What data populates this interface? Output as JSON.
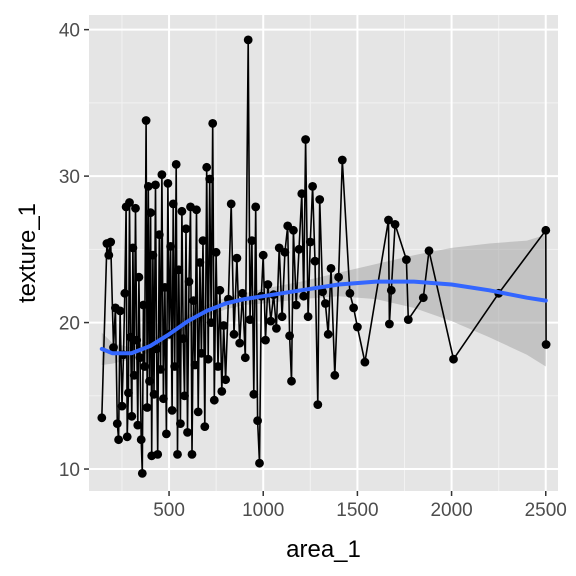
{
  "chart_data": {
    "type": "line",
    "xlabel": "area_1",
    "ylabel": "texture_1",
    "xlim": [
      75,
      2565
    ],
    "ylim": [
      8.5,
      41.0
    ],
    "x_ticks": [
      500,
      1000,
      1500,
      2000,
      2500
    ],
    "x_tick_labels": [
      "500",
      "1000",
      "1500",
      "2000",
      "2500"
    ],
    "y_ticks": [
      10,
      20,
      30,
      40
    ],
    "y_tick_labels": [
      "10",
      "20",
      "30",
      "40"
    ],
    "grid": true,
    "background": "#e5e5e5",
    "series": [
      {
        "kind": "line_with_points",
        "color": "#000000",
        "points": [
          [
            143,
            13.5
          ],
          [
            170,
            25.4
          ],
          [
            180,
            24.6
          ],
          [
            190,
            25.5
          ],
          [
            205,
            18.3
          ],
          [
            215,
            21.0
          ],
          [
            225,
            13.1
          ],
          [
            232,
            12.0
          ],
          [
            240,
            20.8
          ],
          [
            250,
            14.3
          ],
          [
            258,
            17.8
          ],
          [
            265,
            22.0
          ],
          [
            272,
            27.9
          ],
          [
            278,
            12.2
          ],
          [
            284,
            15.2
          ],
          [
            290,
            28.2
          ],
          [
            296,
            19.0
          ],
          [
            302,
            13.6
          ],
          [
            308,
            25.1
          ],
          [
            315,
            16.4
          ],
          [
            322,
            27.8
          ],
          [
            328,
            18.8
          ],
          [
            334,
            13.0
          ],
          [
            340,
            23.1
          ],
          [
            346,
            17.6
          ],
          [
            352,
            12.0
          ],
          [
            358,
            9.7
          ],
          [
            364,
            21.2
          ],
          [
            370,
            17.0
          ],
          [
            378,
            33.8
          ],
          [
            384,
            14.2
          ],
          [
            390,
            29.3
          ],
          [
            396,
            16.0
          ],
          [
            402,
            27.5
          ],
          [
            408,
            10.9
          ],
          [
            414,
            24.6
          ],
          [
            420,
            15.1
          ],
          [
            428,
            29.4
          ],
          [
            434,
            18.2
          ],
          [
            440,
            11.0
          ],
          [
            448,
            26.0
          ],
          [
            455,
            16.8
          ],
          [
            462,
            30.1
          ],
          [
            470,
            14.8
          ],
          [
            478,
            22.4
          ],
          [
            486,
            12.4
          ],
          [
            494,
            29.5
          ],
          [
            500,
            19.2
          ],
          [
            508,
            25.2
          ],
          [
            516,
            14.0
          ],
          [
            522,
            28.1
          ],
          [
            530,
            17.0
          ],
          [
            538,
            30.8
          ],
          [
            545,
            11.0
          ],
          [
            552,
            23.6
          ],
          [
            560,
            13.1
          ],
          [
            568,
            27.6
          ],
          [
            575,
            18.9
          ],
          [
            582,
            15.0
          ],
          [
            590,
            26.4
          ],
          [
            598,
            12.5
          ],
          [
            606,
            22.8
          ],
          [
            614,
            27.9
          ],
          [
            622,
            11.0
          ],
          [
            630,
            21.5
          ],
          [
            638,
            17.1
          ],
          [
            646,
            27.7
          ],
          [
            655,
            13.9
          ],
          [
            664,
            24.1
          ],
          [
            672,
            17.9
          ],
          [
            680,
            25.6
          ],
          [
            690,
            12.9
          ],
          [
            700,
            30.6
          ],
          [
            708,
            17.5
          ],
          [
            716,
            29.8
          ],
          [
            724,
            20.0
          ],
          [
            732,
            33.6
          ],
          [
            740,
            14.7
          ],
          [
            750,
            24.8
          ],
          [
            760,
            17.0
          ],
          [
            770,
            22.2
          ],
          [
            780,
            15.3
          ],
          [
            790,
            19.8
          ],
          [
            800,
            16.1
          ],
          [
            815,
            21.6
          ],
          [
            830,
            28.1
          ],
          [
            845,
            19.2
          ],
          [
            860,
            24.4
          ],
          [
            875,
            18.6
          ],
          [
            890,
            22.0
          ],
          [
            905,
            17.6
          ],
          [
            920,
            39.3
          ],
          [
            930,
            20.2
          ],
          [
            940,
            25.6
          ],
          [
            950,
            15.1
          ],
          [
            960,
            27.9
          ],
          [
            970,
            13.3
          ],
          [
            980,
            10.4
          ],
          [
            990,
            21.8
          ],
          [
            1000,
            24.6
          ],
          [
            1012,
            18.8
          ],
          [
            1025,
            22.6
          ],
          [
            1040,
            20.1
          ],
          [
            1055,
            21.9
          ],
          [
            1070,
            19.6
          ],
          [
            1085,
            25.1
          ],
          [
            1100,
            20.4
          ],
          [
            1115,
            24.8
          ],
          [
            1130,
            26.6
          ],
          [
            1140,
            19.1
          ],
          [
            1150,
            16.0
          ],
          [
            1160,
            26.3
          ],
          [
            1175,
            21.2
          ],
          [
            1190,
            25.0
          ],
          [
            1205,
            28.8
          ],
          [
            1215,
            21.8
          ],
          [
            1225,
            32.5
          ],
          [
            1238,
            20.4
          ],
          [
            1250,
            25.5
          ],
          [
            1262,
            29.3
          ],
          [
            1275,
            24.2
          ],
          [
            1290,
            14.4
          ],
          [
            1300,
            28.4
          ],
          [
            1315,
            22.1
          ],
          [
            1330,
            21.3
          ],
          [
            1345,
            19.2
          ],
          [
            1360,
            23.7
          ],
          [
            1380,
            16.4
          ],
          [
            1400,
            23.1
          ],
          [
            1420,
            31.1
          ],
          [
            1460,
            22.0
          ],
          [
            1480,
            21.0
          ],
          [
            1500,
            19.7
          ],
          [
            1540,
            17.3
          ],
          [
            1665,
            27.0
          ],
          [
            1670,
            19.9
          ],
          [
            1680,
            22.2
          ],
          [
            1700,
            26.7
          ],
          [
            1760,
            24.3
          ],
          [
            1770,
            20.2
          ],
          [
            1850,
            21.7
          ],
          [
            1880,
            24.9
          ],
          [
            2010,
            17.5
          ],
          [
            2250,
            22.0
          ],
          [
            2500,
            26.3
          ],
          [
            2502,
            18.5
          ]
        ]
      }
    ],
    "smooth": {
      "color": "#3366ff",
      "x": [
        143,
        200,
        300,
        400,
        500,
        600,
        700,
        800,
        900,
        1000,
        1200,
        1400,
        1600,
        1800,
        2000,
        2200,
        2400,
        2500
      ],
      "y": [
        18.2,
        17.9,
        17.9,
        18.4,
        19.2,
        20.1,
        20.8,
        21.3,
        21.6,
        21.8,
        22.2,
        22.6,
        22.8,
        22.8,
        22.6,
        22.2,
        21.7,
        21.5
      ],
      "lower": [
        17.1,
        17.2,
        17.5,
        18.0,
        18.8,
        19.7,
        20.4,
        20.9,
        21.2,
        21.3,
        21.6,
        21.8,
        21.6,
        21.0,
        20.1,
        19.0,
        17.8,
        17.0
      ],
      "upper": [
        19.3,
        18.6,
        18.3,
        18.8,
        19.6,
        20.5,
        21.2,
        21.7,
        22.0,
        22.3,
        22.8,
        23.4,
        24.0,
        24.6,
        25.1,
        25.4,
        25.6,
        26.0
      ]
    }
  }
}
